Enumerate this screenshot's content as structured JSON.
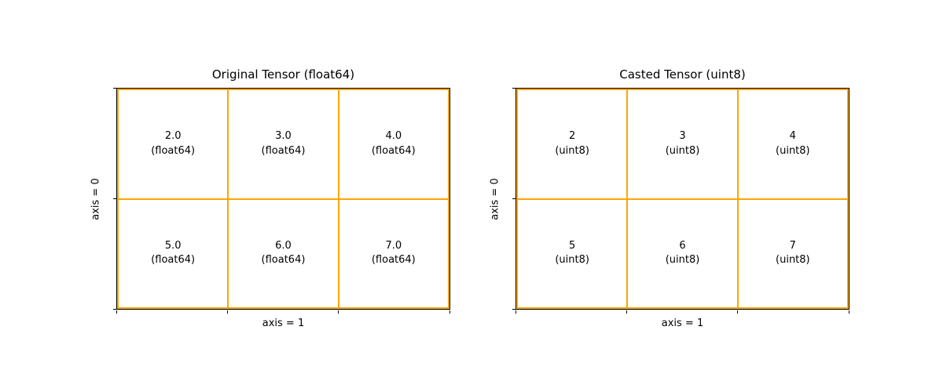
{
  "colors": {
    "grid_line": "#FFA500",
    "spine": "#000000",
    "text": "#000000",
    "background": "#ffffff"
  },
  "chart_data": [
    {
      "type": "table",
      "title": "Original Tensor (float64)",
      "xlabel": "axis = 1",
      "ylabel": "axis = 0",
      "dtype": "float64",
      "rows": 2,
      "cols": 3,
      "values": [
        [
          2.0,
          3.0,
          4.0
        ],
        [
          5.0,
          6.0,
          7.0
        ]
      ],
      "grid_color": "#FFA500",
      "cells": [
        {
          "value": "2.0",
          "dtype": "(float64)"
        },
        {
          "value": "3.0",
          "dtype": "(float64)"
        },
        {
          "value": "4.0",
          "dtype": "(float64)"
        },
        {
          "value": "5.0",
          "dtype": "(float64)"
        },
        {
          "value": "6.0",
          "dtype": "(float64)"
        },
        {
          "value": "7.0",
          "dtype": "(float64)"
        }
      ]
    },
    {
      "type": "table",
      "title": "Casted Tensor (uint8)",
      "xlabel": "axis = 1",
      "ylabel": "axis = 0",
      "dtype": "uint8",
      "rows": 2,
      "cols": 3,
      "values": [
        [
          2,
          3,
          4
        ],
        [
          5,
          6,
          7
        ]
      ],
      "grid_color": "#FFA500",
      "cells": [
        {
          "value": "2",
          "dtype": "(uint8)"
        },
        {
          "value": "3",
          "dtype": "(uint8)"
        },
        {
          "value": "4",
          "dtype": "(uint8)"
        },
        {
          "value": "5",
          "dtype": "(uint8)"
        },
        {
          "value": "6",
          "dtype": "(uint8)"
        },
        {
          "value": "7",
          "dtype": "(uint8)"
        }
      ]
    }
  ]
}
